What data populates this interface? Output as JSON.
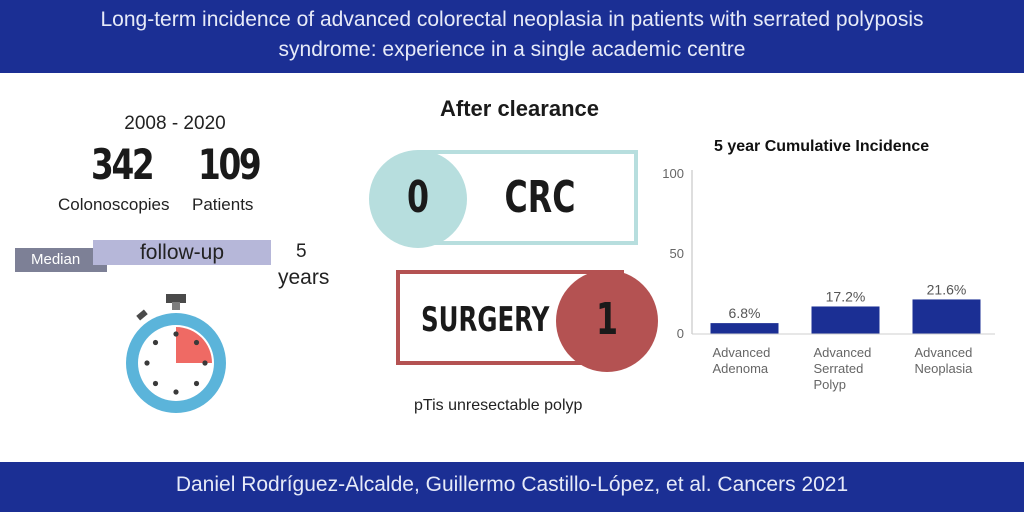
{
  "header": {
    "title_line1": "Long-term incidence of advanced colorectal neoplasia in patients with serrated polyposis",
    "title_line2": "syndrome: experience in a single academic centre"
  },
  "stats": {
    "period": "2008  -  2020",
    "colonoscopies_value": "342",
    "colonoscopies_label": "Colonoscopies",
    "patients_value": "109",
    "patients_label": "Patients"
  },
  "followup": {
    "median_label": "Median",
    "followup_label": "follow-up",
    "value": "5",
    "unit": "years",
    "progress_fraction": 0.25
  },
  "after": {
    "title": "After clearance",
    "crc_count": "0",
    "crc_label": "CRC",
    "surgery_label": "SURGERY",
    "surgery_count": "1",
    "note": "pTis unresectable  polyp"
  },
  "colors": {
    "banner": "#1b2f94",
    "bar": "#1b2f94",
    "crc_circle": "#b7dede",
    "crc_border": "#b7dede",
    "surgery_circle": "#b45252",
    "surgery_border": "#b45252",
    "stopwatch_ring": "#5bb4da",
    "stopwatch_fill": "#ef6a64"
  },
  "chart_data": {
    "type": "bar",
    "title": "5 year Cumulative Incidence",
    "categories": [
      "Advanced Adenoma",
      "Advanced Serrated Polyp",
      "Advanced Neoplasia"
    ],
    "values": [
      6.8,
      17.2,
      21.6
    ],
    "value_labels": [
      "6.8%",
      "17.2%",
      "21.6%"
    ],
    "ylim": [
      0,
      100
    ],
    "yticks": [
      "0",
      "50",
      "100"
    ],
    "xlabel": "",
    "ylabel": "",
    "grid": false
  },
  "footer": {
    "citation": "Daniel Rodríguez-Alcalde, Guillermo Castillo-López, et al. Cancers 2021"
  }
}
